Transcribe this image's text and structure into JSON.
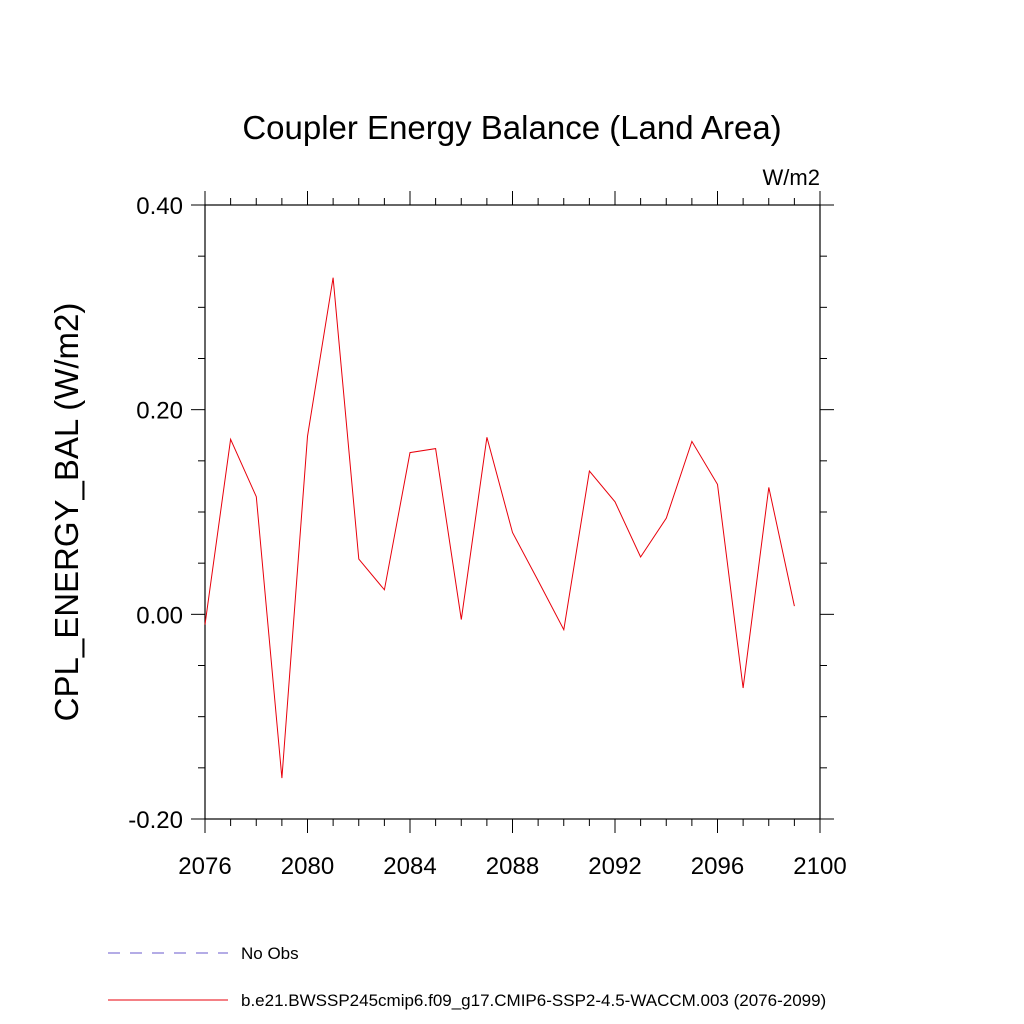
{
  "chart_data": {
    "type": "line",
    "title": "Coupler Energy Balance (Land Area)",
    "units_label": "W/m2",
    "ylabel": "CPL_ENERGY_BAL  (W/m2)",
    "xlabel": "",
    "xlim": [
      2076,
      2100
    ],
    "ylim": [
      -0.2,
      0.4
    ],
    "x_ticks": [
      2076,
      2080,
      2084,
      2088,
      2092,
      2096,
      2100
    ],
    "x_tick_labels": [
      "2076",
      "2080",
      "2084",
      "2088",
      "2092",
      "2096",
      "2100"
    ],
    "y_ticks": [
      -0.2,
      0.0,
      0.2,
      0.4
    ],
    "y_tick_labels": [
      "-0.20",
      "0.00",
      "0.20",
      "0.40"
    ],
    "y_minor_step": 0.05,
    "x_minor_step": 1,
    "grid": false,
    "legend_position": "bottom-left",
    "series": [
      {
        "name": "b.e21.BWSSP245cmip6.f09_g17.CMIP6-SSP2-4.5-WACCM.003 (2076-2099)",
        "color": "#e8000b",
        "style": "solid",
        "x": [
          2076,
          2077,
          2078,
          2079,
          2080,
          2081,
          2082,
          2083,
          2084,
          2085,
          2086,
          2087,
          2088,
          2089,
          2090,
          2091,
          2092,
          2093,
          2094,
          2095,
          2096,
          2097,
          2098,
          2099
        ],
        "values": [
          -0.01,
          0.171,
          0.115,
          -0.16,
          0.174,
          0.329,
          0.054,
          0.024,
          0.158,
          0.162,
          -0.005,
          0.173,
          0.08,
          0.033,
          -0.015,
          0.14,
          0.11,
          0.056,
          0.094,
          0.169,
          0.127,
          -0.072,
          0.124,
          0.008
        ]
      }
    ],
    "legend": [
      {
        "label": "No Obs",
        "color": "#6a5acd",
        "style": "dashed"
      },
      {
        "label": "b.e21.BWSSP245cmip6.f09_g17.CMIP6-SSP2-4.5-WACCM.003 (2076-2099)",
        "color": "#e8000b",
        "style": "solid"
      }
    ]
  }
}
